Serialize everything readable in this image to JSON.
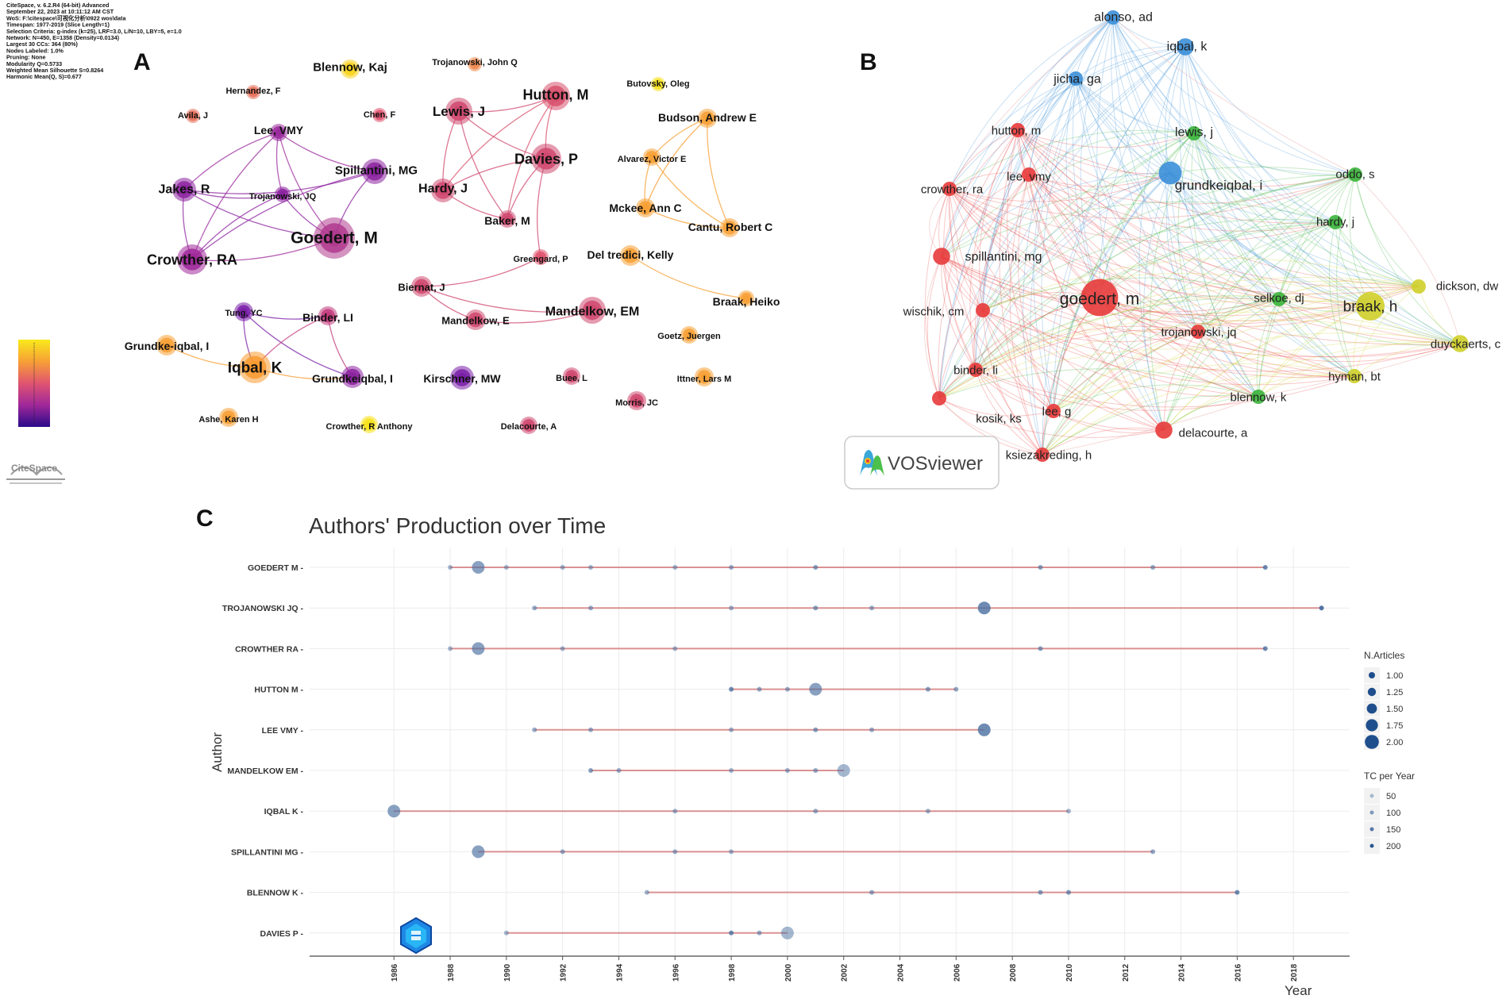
{
  "figure": {
    "panel_a_letter": "A",
    "panel_b_letter": "B",
    "panel_c_letter": "C"
  },
  "citespace": {
    "info_lines": [
      "CiteSpace, v. 6.2.R4 (64-bit) Advanced",
      "September 22, 2023 at 10:11:12 AM CST",
      "WoS: F:\\citespace\\可视化分析\\0922 wos\\data",
      "Timespan: 1977-2019 (Slice Length=1)",
      "Selection Criteria: g-index (k=25), LRF=3.0, L/N=10, LBY=5, e=1.0",
      "Network: N=450, E=1358 (Density=0.0134)",
      "Largest 30 CCs: 364 (80%)",
      "Nodes Labeled: 1.0%",
      "Pruning: None",
      "Modularity Q=0.5733",
      "Weighted Mean Silhouette S=0.8264",
      "Harmonic Mean(Q, S)=0.677"
    ],
    "logo_text": "CiteSpace",
    "colors": {
      "purple": "#7a1fa8",
      "magenta": "#c23b8c",
      "pink": "#e05470",
      "orange": "#f7a035",
      "yellow": "#f7e21c"
    },
    "nodes": [
      {
        "id": "blennow_kaj",
        "label": "Blennow, Kaj",
        "color": "#f7d21c",
        "size": 12
      },
      {
        "id": "trojanowski_john_q",
        "label": "Trojanowski, John Q",
        "color": "#ef8a50",
        "size": 9
      },
      {
        "id": "hernandez_f",
        "label": "Hernandez, F",
        "color": "#e87058",
        "size": 9
      },
      {
        "id": "avila_j",
        "label": "Avila, J",
        "color": "#e87058",
        "size": 9
      },
      {
        "id": "chen_f",
        "label": "Chen, F",
        "color": "#e05470",
        "size": 9
      },
      {
        "id": "lee_vmy_a",
        "label": "Lee, VMY",
        "color": "#9b2a9e",
        "size": 11
      },
      {
        "id": "lewis_j_a",
        "label": "Lewis, J",
        "color": "#d0486f",
        "size": 17
      },
      {
        "id": "hutton_m_a",
        "label": "Hutton, M",
        "color": "#d8506c",
        "size": 18
      },
      {
        "id": "butovsky_oleg",
        "label": "Butovsky, Oleg",
        "color": "#f7e21c",
        "size": 9
      },
      {
        "id": "budson_andrew_e",
        "label": "Budson, Andrew E",
        "color": "#f7a035",
        "size": 12
      },
      {
        "id": "spillantini_mg_a",
        "label": "Spillantini, MG",
        "color": "#8c23a0",
        "size": 16
      },
      {
        "id": "jakes_r",
        "label": "Jakes, R",
        "color": "#8c23a0",
        "size": 15
      },
      {
        "id": "trojanowski_jq_a",
        "label": "Trojanowski, JQ",
        "color": "#8c23a0",
        "size": 10
      },
      {
        "id": "goedert_m_a",
        "label": "Goedert, M",
        "color": "#b03a8e",
        "size": 26
      },
      {
        "id": "davies_p_a",
        "label": "Davies, P",
        "color": "#d0486f",
        "size": 19
      },
      {
        "id": "alvarez_victor_e",
        "label": "Alvarez, Victor E",
        "color": "#f7a035",
        "size": 11
      },
      {
        "id": "hardy_j_a",
        "label": "Hardy, J",
        "color": "#d0486f",
        "size": 15
      },
      {
        "id": "baker_m",
        "label": "Baker, M",
        "color": "#d0486f",
        "size": 11
      },
      {
        "id": "mckee_ann_c",
        "label": "Mckee, Ann C",
        "color": "#f7a035",
        "size": 12
      },
      {
        "id": "cantu_robert_c",
        "label": "Cantu, Robert C",
        "color": "#f7a035",
        "size": 12
      },
      {
        "id": "crowther_ra",
        "label": "Crowther, RA",
        "color": "#a0289a",
        "size": 19
      },
      {
        "id": "greengard_p",
        "label": "Greengard, P",
        "color": "#e05470",
        "size": 10
      },
      {
        "id": "del_tredici_kelly",
        "label": "Del tredici, Kelly",
        "color": "#f7a035",
        "size": 13
      },
      {
        "id": "biernat_j",
        "label": "Biernat, J",
        "color": "#d0486f",
        "size": 13
      },
      {
        "id": "mandelkow_em",
        "label": "Mandelkow, EM",
        "color": "#d0486f",
        "size": 17
      },
      {
        "id": "braak_heiko",
        "label": "Braak, Heiko",
        "color": "#f7a035",
        "size": 10
      },
      {
        "id": "mandelkow_e",
        "label": "Mandelkow, E",
        "color": "#d0486f",
        "size": 13
      },
      {
        "id": "tung_yc",
        "label": "Tung, YC",
        "color": "#7a1fa8",
        "size": 12
      },
      {
        "id": "binder_li",
        "label": "Binder, LI",
        "color": "#c23b7c",
        "size": 12
      },
      {
        "id": "goetz_juergen",
        "label": "Goetz, Juergen",
        "color": "#f7a035",
        "size": 11
      },
      {
        "id": "grundke_iqbal_i",
        "label": "Grundke-iqbal, I",
        "color": "#f7a035",
        "size": 13
      },
      {
        "id": "iqbal_k_a",
        "label": "Iqbal, K",
        "color": "#f79a30",
        "size": 20
      },
      {
        "id": "grundkeiqbal_i_a",
        "label": "Grundkeiqbal, I",
        "color": "#8c23a0",
        "size": 14
      },
      {
        "id": "kirschner_mw",
        "label": "Kirschner, MW",
        "color": "#7a1fa8",
        "size": 15
      },
      {
        "id": "buee_l",
        "label": "Buee, L",
        "color": "#d0486f",
        "size": 11
      },
      {
        "id": "ittner_lars_m",
        "label": "Ittner, Lars M",
        "color": "#f7a035",
        "size": 12
      },
      {
        "id": "morris_jc",
        "label": "Morris, JC",
        "color": "#d0486f",
        "size": 12
      },
      {
        "id": "ashe_karen_h",
        "label": "Ashe, Karen H",
        "color": "#f7a035",
        "size": 12
      },
      {
        "id": "crowther_r_anthony",
        "label": "Crowther, R Anthony",
        "color": "#f7e21c",
        "size": 11
      },
      {
        "id": "delacourte_a",
        "label": "Delacourte, A",
        "color": "#d0486f",
        "size": 11
      }
    ],
    "links": [
      [
        "lee_vmy_a",
        "jakes_r"
      ],
      [
        "lee_vmy_a",
        "spillantini_mg_a"
      ],
      [
        "lee_vmy_a",
        "goedert_m_a"
      ],
      [
        "lee_vmy_a",
        "crowther_ra"
      ],
      [
        "lee_vmy_a",
        "trojanowski_jq_a"
      ],
      [
        "jakes_r",
        "spillantini_mg_a"
      ],
      [
        "jakes_r",
        "goedert_m_a"
      ],
      [
        "jakes_r",
        "crowther_ra"
      ],
      [
        "jakes_r",
        "trojanowski_jq_a"
      ],
      [
        "spillantini_mg_a",
        "goedert_m_a"
      ],
      [
        "spillantini_mg_a",
        "crowther_ra"
      ],
      [
        "trojanowski_jq_a",
        "goedert_m_a"
      ],
      [
        "crowther_ra",
        "goedert_m_a"
      ],
      [
        "trojanowski_jq_a",
        "crowther_ra"
      ],
      [
        "lewis_j_a",
        "hutton_m_a"
      ],
      [
        "lewis_j_a",
        "davies_p_a"
      ],
      [
        "lewis_j_a",
        "hardy_j_a"
      ],
      [
        "lewis_j_a",
        "baker_m"
      ],
      [
        "hutton_m_a",
        "davies_p_a"
      ],
      [
        "hutton_m_a",
        "hardy_j_a"
      ],
      [
        "hutton_m_a",
        "baker_m"
      ],
      [
        "davies_p_a",
        "hardy_j_a"
      ],
      [
        "davies_p_a",
        "baker_m"
      ],
      [
        "hardy_j_a",
        "baker_m"
      ],
      [
        "davies_p_a",
        "greengard_p"
      ],
      [
        "budson_andrew_e",
        "alvarez_victor_e"
      ],
      [
        "budson_andrew_e",
        "mckee_ann_c"
      ],
      [
        "budson_andrew_e",
        "cantu_robert_c"
      ],
      [
        "alvarez_victor_e",
        "mckee_ann_c"
      ],
      [
        "alvarez_victor_e",
        "cantu_robert_c"
      ],
      [
        "mckee_ann_c",
        "cantu_robert_c"
      ],
      [
        "del_tredici_kelly",
        "braak_heiko"
      ],
      [
        "biernat_j",
        "mandelkow_em"
      ],
      [
        "biernat_j",
        "mandelkow_e"
      ],
      [
        "mandelkow_e",
        "mandelkow_em"
      ],
      [
        "biernat_j",
        "greengard_p"
      ],
      [
        "tung_yc",
        "binder_li"
      ],
      [
        "tung_yc",
        "iqbal_k_a"
      ],
      [
        "tung_yc",
        "grundkeiqbal_i_a"
      ],
      [
        "iqbal_k_a",
        "grundkeiqbal_i_a"
      ],
      [
        "binder_li",
        "grundkeiqbal_i_a"
      ],
      [
        "binder_li",
        "iqbal_k_a"
      ],
      [
        "grundke_iqbal_i",
        "iqbal_k_a"
      ]
    ]
  },
  "vosviewer": {
    "logo_text": "VOSviewer",
    "cluster_colors": {
      "red": "#e83a3a",
      "green": "#3ab43a",
      "blue": "#3b8fd9",
      "yellow": "#cfcf2a"
    },
    "nodes": [
      {
        "id": "alonso_ad",
        "label": "alonso, ad",
        "cluster": "blue",
        "weight": 1.0,
        "font": 16
      },
      {
        "id": "iqbal_k",
        "label": "iqbal, k",
        "cluster": "blue",
        "weight": 1.2,
        "font": 16
      },
      {
        "id": "jicha_ga",
        "label": "jicha, ga",
        "cluster": "blue",
        "weight": 1.0,
        "font": 16
      },
      {
        "id": "hutton_m",
        "label": "hutton, m",
        "cluster": "red",
        "weight": 1.0,
        "font": 15
      },
      {
        "id": "lewis_j",
        "label": "lewis, j",
        "cluster": "green",
        "weight": 1.0,
        "font": 16
      },
      {
        "id": "lee_vmy",
        "label": "lee, vmy",
        "cluster": "red",
        "weight": 1.0,
        "font": 15
      },
      {
        "id": "crowther_ra_v",
        "label": "crowther, ra",
        "cluster": "red",
        "weight": 1.0,
        "font": 15
      },
      {
        "id": "grundkeiqbal_i",
        "label": "grundkeiqbal, i",
        "cluster": "blue",
        "weight": 1.6,
        "font": 17
      },
      {
        "id": "oddo_s",
        "label": "oddo, s",
        "cluster": "green",
        "weight": 1.0,
        "font": 15
      },
      {
        "id": "hardy_j",
        "label": "hardy, j",
        "cluster": "green",
        "weight": 1.0,
        "font": 15
      },
      {
        "id": "spillantini_mg",
        "label": "spillantini, mg",
        "cluster": "red",
        "weight": 1.2,
        "font": 16
      },
      {
        "id": "goedert_m",
        "label": "goedert, m",
        "cluster": "red",
        "weight": 2.6,
        "font": 21
      },
      {
        "id": "dickson_dw",
        "label": "dickson, dw",
        "cluster": "yellow",
        "weight": 1.0,
        "font": 15
      },
      {
        "id": "selkoe_dj",
        "label": "selkoe, dj",
        "cluster": "green",
        "weight": 1.0,
        "font": 15
      },
      {
        "id": "braak_h",
        "label": "braak, h",
        "cluster": "yellow",
        "weight": 2.0,
        "font": 19
      },
      {
        "id": "wischik_cm",
        "label": "wischik, cm",
        "cluster": "red",
        "weight": 1.0,
        "font": 15
      },
      {
        "id": "trojanowski_jq",
        "label": "trojanowski, jq",
        "cluster": "red",
        "weight": 1.0,
        "font": 15
      },
      {
        "id": "duyckaerts_c",
        "label": "duyckaerts, c",
        "cluster": "yellow",
        "weight": 1.2,
        "font": 15
      },
      {
        "id": "binder_li_v",
        "label": "binder, li",
        "cluster": "red",
        "weight": 1.0,
        "font": 15
      },
      {
        "id": "hyman_bt",
        "label": "hyman, bt",
        "cluster": "yellow",
        "weight": 1.0,
        "font": 15
      },
      {
        "id": "blennow_k",
        "label": "blennow, k",
        "cluster": "green",
        "weight": 1.0,
        "font": 15
      },
      {
        "id": "kosik_ks",
        "label": "kosik, ks",
        "cluster": "red",
        "weight": 1.0,
        "font": 15
      },
      {
        "id": "lee_g",
        "label": "lee, g",
        "cluster": "red",
        "weight": 1.0,
        "font": 15
      },
      {
        "id": "delacourte_a_v",
        "label": "delacourte, a",
        "cluster": "red",
        "weight": 1.2,
        "font": 15
      },
      {
        "id": "ksiezakreding_h",
        "label": "ksiezakreding, h",
        "cluster": "red",
        "weight": 1.0,
        "font": 15
      }
    ]
  },
  "chart_data": {
    "type": "scatter",
    "title": "Authors' Production over Time",
    "xlabel": "Year",
    "ylabel": "Author",
    "xlim": [
      1983,
      2020
    ],
    "x_ticks": [
      1986,
      1988,
      1990,
      1992,
      1994,
      1996,
      1998,
      2000,
      2002,
      2004,
      2006,
      2008,
      2010,
      2012,
      2014,
      2016,
      2018
    ],
    "authors": [
      "GOEDERT M",
      "TROJANOWSKI JQ",
      "CROWTHER RA",
      "HUTTON M",
      "LEE VMY",
      "MANDELKOW EM",
      "IQBAL K",
      "SPILLANTINI MG",
      "BLENNOW K",
      "DAVIES P"
    ],
    "series": [
      {
        "name": "GOEDERT M",
        "points": [
          {
            "year": 1988,
            "n": 1,
            "tc": 50
          },
          {
            "year": 1989,
            "n": 2,
            "tc": 100
          },
          {
            "year": 1990,
            "n": 1,
            "tc": 50
          },
          {
            "year": 1992,
            "n": 1,
            "tc": 60
          },
          {
            "year": 1993,
            "n": 1,
            "tc": 60
          },
          {
            "year": 1996,
            "n": 1,
            "tc": 60
          },
          {
            "year": 1998,
            "n": 1,
            "tc": 70
          },
          {
            "year": 2001,
            "n": 1,
            "tc": 100
          },
          {
            "year": 2009,
            "n": 1,
            "tc": 100
          },
          {
            "year": 2013,
            "n": 1,
            "tc": 80
          },
          {
            "year": 2017,
            "n": 1,
            "tc": 150
          }
        ]
      },
      {
        "name": "TROJANOWSKI JQ",
        "points": [
          {
            "year": 1991,
            "n": 1,
            "tc": 80
          },
          {
            "year": 1993,
            "n": 1,
            "tc": 70
          },
          {
            "year": 1998,
            "n": 1,
            "tc": 60
          },
          {
            "year": 2001,
            "n": 1,
            "tc": 100
          },
          {
            "year": 2003,
            "n": 1,
            "tc": 70
          },
          {
            "year": 2007,
            "n": 2,
            "tc": 150
          },
          {
            "year": 2019,
            "n": 1,
            "tc": 200
          }
        ]
      },
      {
        "name": "CROWTHER RA",
        "points": [
          {
            "year": 1988,
            "n": 1,
            "tc": 50
          },
          {
            "year": 1989,
            "n": 2,
            "tc": 100
          },
          {
            "year": 1992,
            "n": 1,
            "tc": 60
          },
          {
            "year": 1996,
            "n": 1,
            "tc": 60
          },
          {
            "year": 2009,
            "n": 1,
            "tc": 100
          },
          {
            "year": 2017,
            "n": 1,
            "tc": 150
          }
        ]
      },
      {
        "name": "HUTTON M",
        "points": [
          {
            "year": 1998,
            "n": 1,
            "tc": 150
          },
          {
            "year": 1999,
            "n": 1,
            "tc": 80
          },
          {
            "year": 2000,
            "n": 1,
            "tc": 70
          },
          {
            "year": 2001,
            "n": 2,
            "tc": 100
          },
          {
            "year": 2005,
            "n": 1,
            "tc": 100
          },
          {
            "year": 2006,
            "n": 1,
            "tc": 80
          }
        ]
      },
      {
        "name": "LEE VMY",
        "points": [
          {
            "year": 1991,
            "n": 1,
            "tc": 70
          },
          {
            "year": 1993,
            "n": 1,
            "tc": 70
          },
          {
            "year": 1998,
            "n": 1,
            "tc": 60
          },
          {
            "year": 2001,
            "n": 1,
            "tc": 100
          },
          {
            "year": 2003,
            "n": 1,
            "tc": 70
          },
          {
            "year": 2007,
            "n": 2,
            "tc": 150
          }
        ]
      },
      {
        "name": "MANDELKOW EM",
        "points": [
          {
            "year": 1993,
            "n": 1,
            "tc": 100
          },
          {
            "year": 1994,
            "n": 1,
            "tc": 70
          },
          {
            "year": 1998,
            "n": 1,
            "tc": 60
          },
          {
            "year": 2000,
            "n": 1,
            "tc": 70
          },
          {
            "year": 2001,
            "n": 1,
            "tc": 80
          },
          {
            "year": 2002,
            "n": 2,
            "tc": 50
          }
        ]
      },
      {
        "name": "IQBAL K",
        "points": [
          {
            "year": 1986,
            "n": 2,
            "tc": 100
          },
          {
            "year": 1996,
            "n": 1,
            "tc": 60
          },
          {
            "year": 2001,
            "n": 1,
            "tc": 70
          },
          {
            "year": 2005,
            "n": 1,
            "tc": 60
          },
          {
            "year": 2010,
            "n": 1,
            "tc": 50
          }
        ]
      },
      {
        "name": "SPILLANTINI MG",
        "points": [
          {
            "year": 1989,
            "n": 2,
            "tc": 100
          },
          {
            "year": 1992,
            "n": 1,
            "tc": 70
          },
          {
            "year": 1996,
            "n": 1,
            "tc": 70
          },
          {
            "year": 1998,
            "n": 1,
            "tc": 60
          },
          {
            "year": 2013,
            "n": 1,
            "tc": 80
          }
        ]
      },
      {
        "name": "BLENNOW K",
        "points": [
          {
            "year": 1995,
            "n": 1,
            "tc": 60
          },
          {
            "year": 2003,
            "n": 1,
            "tc": 80
          },
          {
            "year": 2009,
            "n": 1,
            "tc": 100
          },
          {
            "year": 2010,
            "n": 1,
            "tc": 120
          },
          {
            "year": 2016,
            "n": 1,
            "tc": 150
          }
        ]
      },
      {
        "name": "DAVIES P",
        "points": [
          {
            "year": 1990,
            "n": 1,
            "tc": 50
          },
          {
            "year": 1998,
            "n": 1,
            "tc": 150
          },
          {
            "year": 1999,
            "n": 1,
            "tc": 70
          },
          {
            "year": 2000,
            "n": 2,
            "tc": 50
          }
        ]
      }
    ],
    "legend_n_articles": {
      "title": "N.Articles",
      "values": [
        "1.00",
        "1.25",
        "1.50",
        "1.75",
        "2.00"
      ]
    },
    "legend_tc": {
      "title": "TC per Year",
      "values": [
        "50",
        "100",
        "150",
        "200"
      ]
    },
    "colors": {
      "line": "#d47a7a",
      "point": "#4a6fa0",
      "grid": "#ececec"
    }
  }
}
